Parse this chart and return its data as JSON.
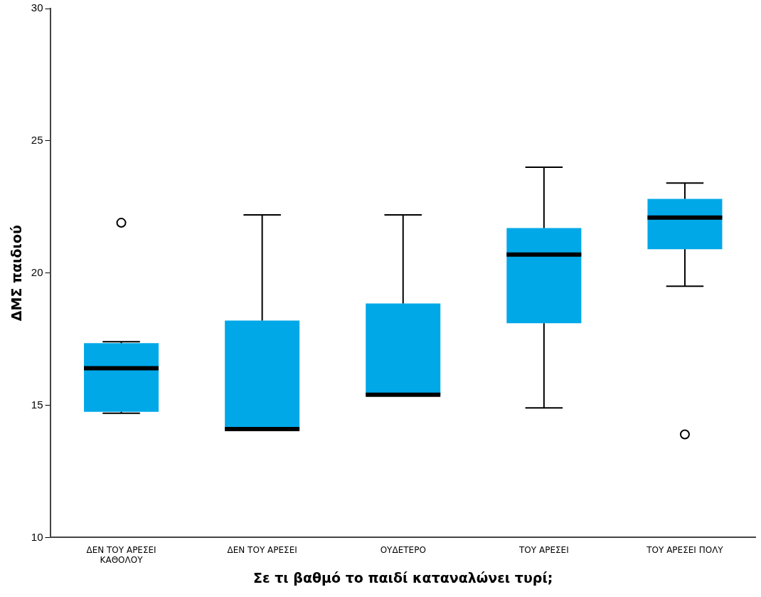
{
  "chart_data": {
    "type": "box",
    "xlabel": "Σε τι βαθμό το παιδί καταναλώνει τυρί;",
    "ylabel": "ΔΜΣ παιδιού",
    "categories": [
      "ΔΕΝ ΤΟΥ ΑΡΕΣΕΙ ΚΑΘΟΛΟΥ",
      "ΔΕΝ ΤΟΥ ΑΡΕΣΕΙ",
      "ΟΥΔΕΤΕΡΟ",
      "ΤΟΥ ΑΡΕΣΕΙ",
      "ΤΟΥ ΑΡΕΣΕΙ ΠΟΛΥ"
    ],
    "color": "#00a8e8",
    "boxes": [
      {
        "low": 14.7,
        "q1": 14.75,
        "median": 16.4,
        "q3": 17.35,
        "high": 17.4,
        "outliers": [
          21.9
        ]
      },
      {
        "low": 14.1,
        "q1": 14.1,
        "median": 14.1,
        "q3": 18.2,
        "high": 22.2
      },
      {
        "low": 15.4,
        "q1": 15.4,
        "median": 15.4,
        "q3": 18.85,
        "high": 22.2
      },
      {
        "low": 14.9,
        "q1": 18.1,
        "median": 20.7,
        "q3": 21.7,
        "high": 24.0
      },
      {
        "low": 19.5,
        "q1": 20.9,
        "median": 22.1,
        "q3": 22.8,
        "high": 23.4,
        "outliers": [
          13.9
        ]
      }
    ],
    "ylim": [
      10,
      30
    ],
    "yticks": [
      10,
      15,
      20,
      25,
      30
    ],
    "grid": false,
    "legend": false
  }
}
